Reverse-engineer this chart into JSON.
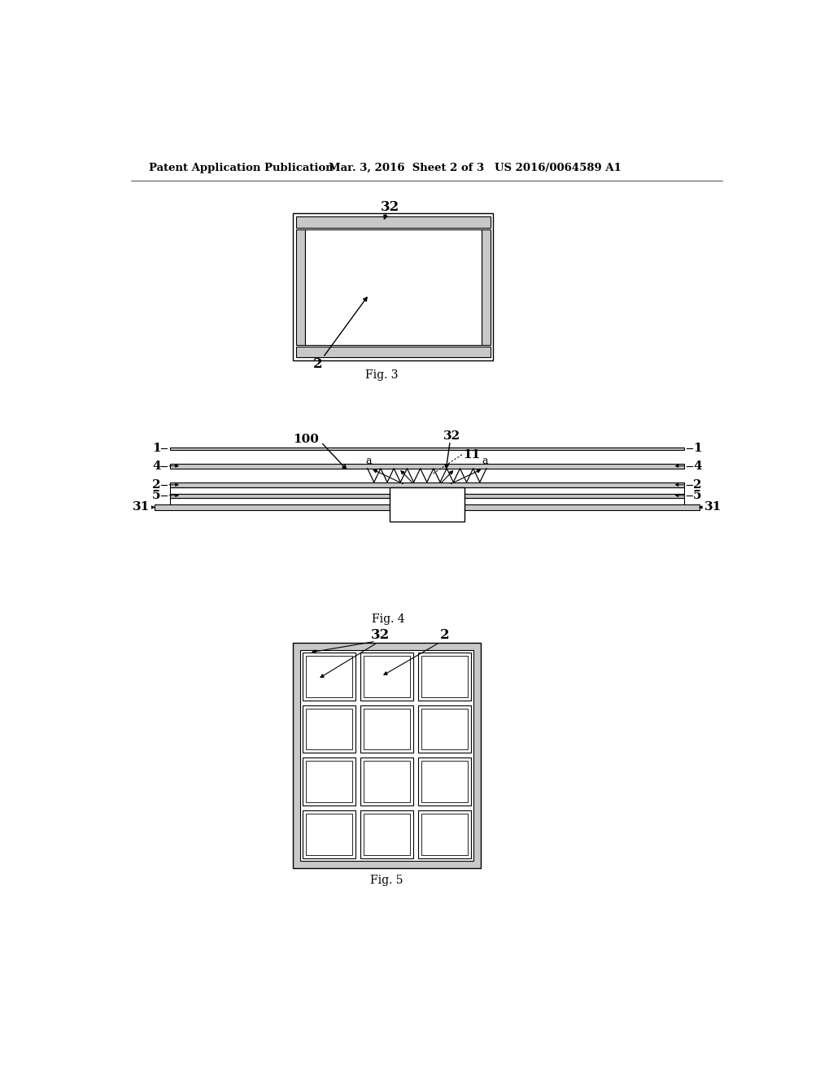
{
  "bg_color": "#ffffff",
  "header_text": "Patent Application Publication",
  "header_date": "Mar. 3, 2016  Sheet 2 of 3",
  "header_patent": "US 2016/0064589 A1",
  "fig3_label": "Fig. 3",
  "fig4_label": "Fig. 4",
  "fig5_label": "Fig. 5",
  "line_color": "#000000",
  "gray_fill": "#c8c8c8",
  "light_gray": "#e0e0e0"
}
